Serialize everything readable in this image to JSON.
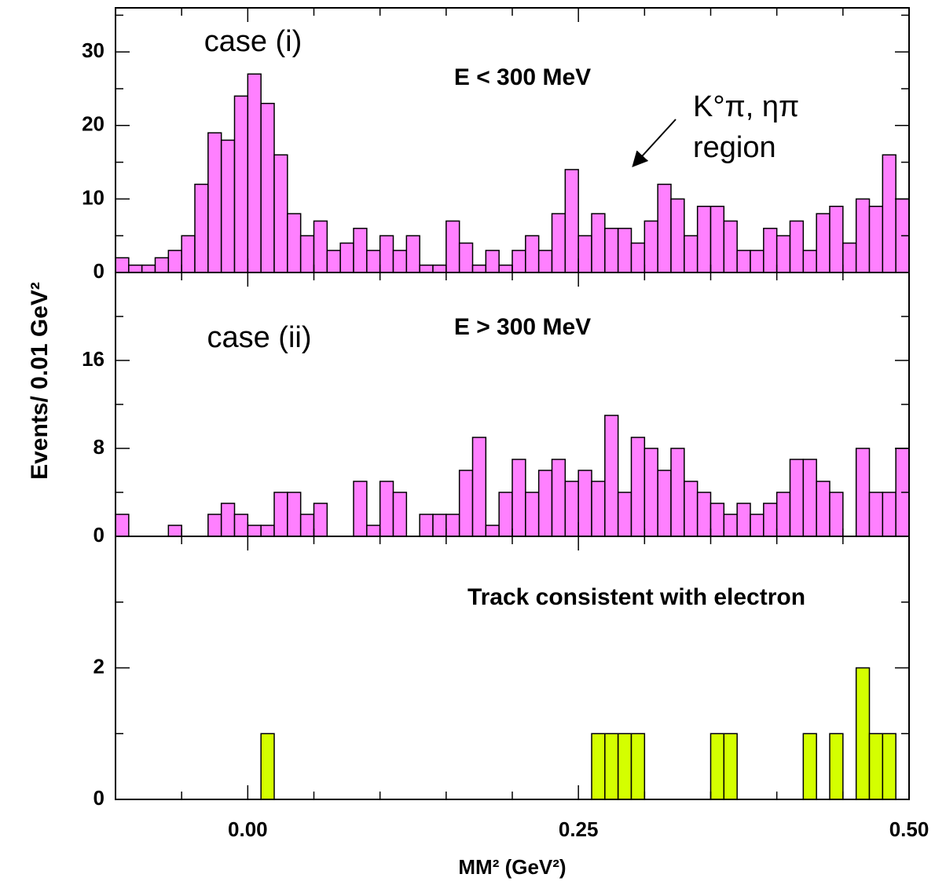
{
  "chart_data": [
    {
      "type": "histogram",
      "color": "#ff80ff",
      "bins": [
        -0.1,
        -0.09,
        -0.08,
        -0.07,
        -0.06,
        -0.05,
        -0.04,
        -0.03,
        -0.02,
        -0.01,
        0,
        0.01,
        0.02,
        0.03,
        0.04,
        0.05,
        0.06,
        0.07,
        0.08,
        0.09,
        0.1,
        0.11,
        0.12,
        0.13,
        0.14,
        0.15,
        0.16,
        0.17,
        0.18,
        0.19,
        0.2,
        0.21,
        0.22,
        0.23,
        0.24,
        0.25,
        0.26,
        0.27,
        0.28,
        0.29,
        0.3,
        0.31,
        0.32,
        0.33,
        0.34,
        0.35,
        0.36,
        0.37,
        0.38,
        0.39,
        0.4,
        0.41,
        0.42,
        0.43,
        0.44,
        0.45,
        0.46,
        0.47,
        0.48,
        0.49,
        0.5
      ],
      "values": [
        2,
        1,
        1,
        2,
        3,
        5,
        12,
        19,
        18,
        24,
        27,
        23,
        16,
        8,
        5,
        7,
        3,
        4,
        6,
        3,
        5,
        3,
        5,
        1,
        1,
        7,
        4,
        1,
        3,
        1,
        3,
        5,
        3,
        8,
        14,
        5,
        8,
        6,
        6,
        4,
        7,
        12,
        10,
        5,
        9,
        9,
        7,
        3,
        3,
        6,
        5,
        7,
        3,
        8,
        9,
        4,
        10,
        9,
        16,
        10
      ],
      "xlim": [
        -0.1,
        0.5
      ],
      "ylim": [
        0,
        36
      ],
      "yticks": [
        0,
        10,
        20,
        30
      ],
      "yminorticks": [
        5,
        15,
        25,
        35
      ],
      "annotations": [
        "case (i)",
        "E < 300 MeV",
        "K°π, ηπ",
        "region"
      ]
    },
    {
      "type": "histogram",
      "color": "#ff80ff",
      "bins": [
        -0.1,
        -0.09,
        -0.08,
        -0.07,
        -0.06,
        -0.05,
        -0.04,
        -0.03,
        -0.02,
        -0.01,
        0,
        0.01,
        0.02,
        0.03,
        0.04,
        0.05,
        0.06,
        0.07,
        0.08,
        0.09,
        0.1,
        0.11,
        0.12,
        0.13,
        0.14,
        0.15,
        0.16,
        0.17,
        0.18,
        0.19,
        0.2,
        0.21,
        0.22,
        0.23,
        0.24,
        0.25,
        0.26,
        0.27,
        0.28,
        0.29,
        0.3,
        0.31,
        0.32,
        0.33,
        0.34,
        0.35,
        0.36,
        0.37,
        0.38,
        0.39,
        0.4,
        0.41,
        0.42,
        0.43,
        0.44,
        0.45,
        0.46,
        0.47,
        0.48,
        0.49,
        0.5
      ],
      "values": [
        2,
        0,
        0,
        0,
        1,
        0,
        0,
        2,
        3,
        2,
        1,
        1,
        4,
        4,
        2,
        3,
        0,
        0,
        5,
        1,
        5,
        4,
        0,
        2,
        2,
        2,
        6,
        9,
        1,
        4,
        7,
        4,
        6,
        7,
        5,
        6,
        5,
        11,
        4,
        9,
        8,
        6,
        8,
        5,
        4,
        3,
        2,
        3,
        2,
        3,
        4,
        7,
        7,
        5,
        4,
        0,
        8,
        4,
        4,
        8
      ],
      "xlim": [
        -0.1,
        0.5
      ],
      "ylim": [
        0,
        24
      ],
      "yticks": [
        0,
        8,
        16
      ],
      "yminorticks": [
        4,
        12,
        20
      ],
      "ylabel": "Events/ 0.01 GeV²",
      "annotations": [
        "case (ii)",
        "E > 300 MeV"
      ]
    },
    {
      "type": "histogram",
      "color": "#d4ff00",
      "bins": [
        -0.1,
        -0.09,
        -0.08,
        -0.07,
        -0.06,
        -0.05,
        -0.04,
        -0.03,
        -0.02,
        -0.01,
        0,
        0.01,
        0.02,
        0.03,
        0.04,
        0.05,
        0.06,
        0.07,
        0.08,
        0.09,
        0.1,
        0.11,
        0.12,
        0.13,
        0.14,
        0.15,
        0.16,
        0.17,
        0.18,
        0.19,
        0.2,
        0.21,
        0.22,
        0.23,
        0.24,
        0.25,
        0.26,
        0.27,
        0.28,
        0.29,
        0.3,
        0.31,
        0.32,
        0.33,
        0.34,
        0.35,
        0.36,
        0.37,
        0.38,
        0.39,
        0.4,
        0.41,
        0.42,
        0.43,
        0.44,
        0.45,
        0.46,
        0.47,
        0.48,
        0.49,
        0.5
      ],
      "values": [
        0,
        0,
        0,
        0,
        0,
        0,
        0,
        0,
        0,
        0,
        0,
        1,
        0,
        0,
        0,
        0,
        0,
        0,
        0,
        0,
        0,
        0,
        0,
        0,
        0,
        0,
        0,
        0,
        0,
        0,
        0,
        0,
        0,
        0,
        0,
        0,
        1,
        1,
        1,
        1,
        0,
        0,
        0,
        0,
        0,
        1,
        1,
        0,
        0,
        0,
        0,
        0,
        1,
        0,
        1,
        0,
        2,
        1,
        1,
        0
      ],
      "xlim": [
        -0.1,
        0.5
      ],
      "ylim": [
        0,
        4
      ],
      "yticks": [
        0,
        2
      ],
      "yminorticks": [
        1,
        3
      ],
      "xticks": [
        {
          "value": 0,
          "label": "0.00"
        },
        0.25,
        {
          "value": 0.5,
          "label": "0.50"
        }
      ],
      "xminorticks": [
        -0.05,
        0.05,
        0.1,
        0.15,
        0.2,
        0.3,
        0.35,
        0.4,
        0.45
      ],
      "xlabel": "MM² (GeV²)",
      "annotations": [
        "Track consistent with electron"
      ]
    }
  ]
}
